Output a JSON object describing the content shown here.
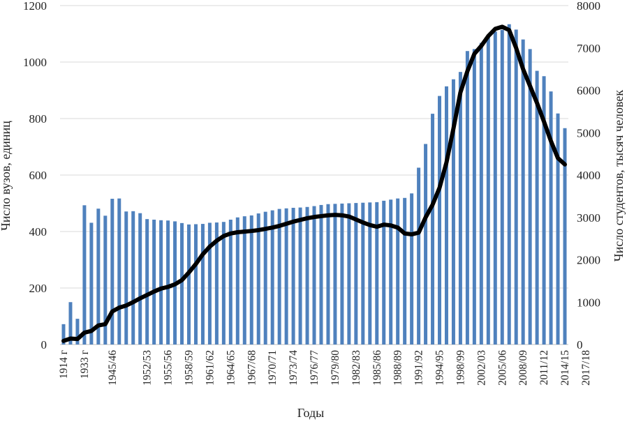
{
  "chart_data": {
    "type": "bar+line",
    "xlabel": "Годы",
    "ylabel_left": "Число вузов, единиц",
    "ylabel_right": "Число студентов, тысяч человек",
    "ylim_left": [
      0,
      1200
    ],
    "ylim_right": [
      0,
      8000
    ],
    "yticks_left": [
      "0",
      "200",
      "400",
      "600",
      "800",
      "1000",
      "1200"
    ],
    "yticks_right": [
      "0",
      "1000",
      "2000",
      "3000",
      "4000",
      "5000",
      "6000",
      "7000",
      "8000"
    ],
    "grid": "horizontal",
    "colors": {
      "bars": "#4f81bd",
      "line": "#000000",
      "grid": "#d9d9d9"
    },
    "x_tick_labels": [
      {
        "index": 0,
        "label": "1914 г"
      },
      {
        "index": 3,
        "label": "1933 г"
      },
      {
        "index": 7,
        "label": "1945/46"
      },
      {
        "index": 12,
        "label": "1952/53"
      },
      {
        "index": 15,
        "label": "1955/56"
      },
      {
        "index": 18,
        "label": "1958/59"
      },
      {
        "index": 21,
        "label": "1961/62"
      },
      {
        "index": 24,
        "label": "1964/65"
      },
      {
        "index": 27,
        "label": "1967/68"
      },
      {
        "index": 30,
        "label": "1970/71"
      },
      {
        "index": 33,
        "label": "1973/74"
      },
      {
        "index": 36,
        "label": "1976/77"
      },
      {
        "index": 39,
        "label": "1979/80"
      },
      {
        "index": 42,
        "label": "1982/83"
      },
      {
        "index": 45,
        "label": "1985/86"
      },
      {
        "index": 48,
        "label": "1988/89"
      },
      {
        "index": 51,
        "label": "1991/92"
      },
      {
        "index": 54,
        "label": "1994/95"
      },
      {
        "index": 57,
        "label": "1998/99"
      },
      {
        "index": 60,
        "label": "2002/03"
      },
      {
        "index": 63,
        "label": "2005/06"
      },
      {
        "index": 66,
        "label": "2008/09"
      },
      {
        "index": 69,
        "label": "2011/12"
      },
      {
        "index": 72,
        "label": "2014/15"
      },
      {
        "index": 75,
        "label": "2017/18"
      }
    ],
    "series": [
      {
        "name": "Число вузов, единиц",
        "type": "bar",
        "axis": "left",
        "values": [
          72,
          150,
          91,
          493,
          431,
          481,
          456,
          516,
          517,
          471,
          472,
          465,
          444,
          442,
          440,
          439,
          436,
          430,
          425,
          426,
          427,
          431,
          432,
          434,
          442,
          450,
          454,
          457,
          464,
          470,
          475,
          480,
          482,
          484,
          485,
          487,
          490,
          494,
          497,
          498,
          499,
          500,
          501,
          502,
          503,
          504,
          509,
          513,
          517,
          519,
          535,
          626,
          710,
          817,
          880,
          914,
          939,
          965,
          1039,
          1046,
          1068,
          1090,
          1108,
          1114,
          1134,
          1115,
          1080,
          1046,
          969,
          950,
          896,
          818,
          766
        ]
      },
      {
        "name": "Число студентов, тысяч человек",
        "type": "line",
        "axis": "right",
        "values": [
          85,
          140,
          130,
          280,
          320,
          450,
          480,
          780,
          870,
          920,
          1000,
          1090,
          1170,
          1250,
          1320,
          1360,
          1420,
          1520,
          1700,
          1900,
          2130,
          2310,
          2450,
          2560,
          2620,
          2650,
          2665,
          2680,
          2700,
          2730,
          2760,
          2800,
          2850,
          2900,
          2940,
          2980,
          3010,
          3030,
          3050,
          3060,
          3050,
          3020,
          2950,
          2880,
          2820,
          2780,
          2830,
          2810,
          2760,
          2620,
          2600,
          2640,
          3000,
          3300,
          3700,
          4300,
          5100,
          5950,
          6450,
          6860,
          7050,
          7280,
          7450,
          7500,
          7420,
          7000,
          6500,
          6100,
          5700,
          5260,
          4800,
          4400,
          4250
        ]
      }
    ]
  }
}
